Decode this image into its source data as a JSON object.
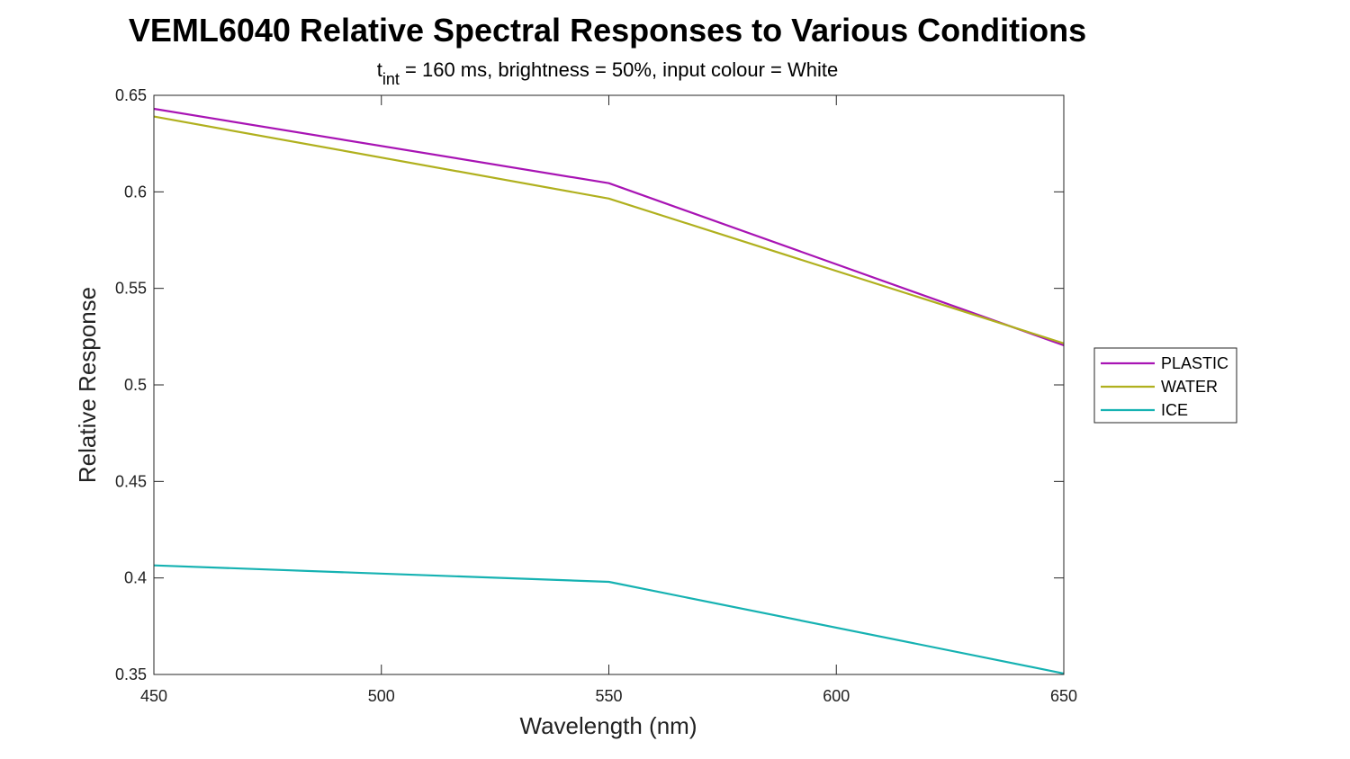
{
  "chart_data": {
    "type": "line",
    "title": "VEML6040 Relative Spectral Responses to Various Conditions",
    "subtitle": {
      "t": "t",
      "sub": "int",
      "rest": " = 160 ms, brightness = 50%, input colour = White"
    },
    "xlabel": "Wavelength (nm)",
    "ylabel": "Relative Response",
    "xlim": [
      450,
      650
    ],
    "ylim": [
      0.35,
      0.65
    ],
    "xticks": [
      450,
      500,
      550,
      600,
      650
    ],
    "xtick_labels": [
      "450",
      "500",
      "550",
      "600",
      "650"
    ],
    "yticks": [
      0.35,
      0.4,
      0.45,
      0.5,
      0.55,
      0.6,
      0.65
    ],
    "ytick_labels": [
      "0.35",
      "0.4",
      "0.45",
      "0.5",
      "0.55",
      "0.6",
      "0.65"
    ],
    "grid": false,
    "legend_position": "right",
    "x": [
      450,
      550,
      650
    ],
    "series": [
      {
        "name": "PLASTIC",
        "color": "#a814b4",
        "values": [
          0.643,
          0.6045,
          0.5205
        ]
      },
      {
        "name": "WATER",
        "color": "#b0b01e",
        "values": [
          0.639,
          0.5965,
          0.5215
        ]
      },
      {
        "name": "ICE",
        "color": "#16b2b2",
        "values": [
          0.4065,
          0.398,
          0.3505
        ]
      }
    ]
  }
}
